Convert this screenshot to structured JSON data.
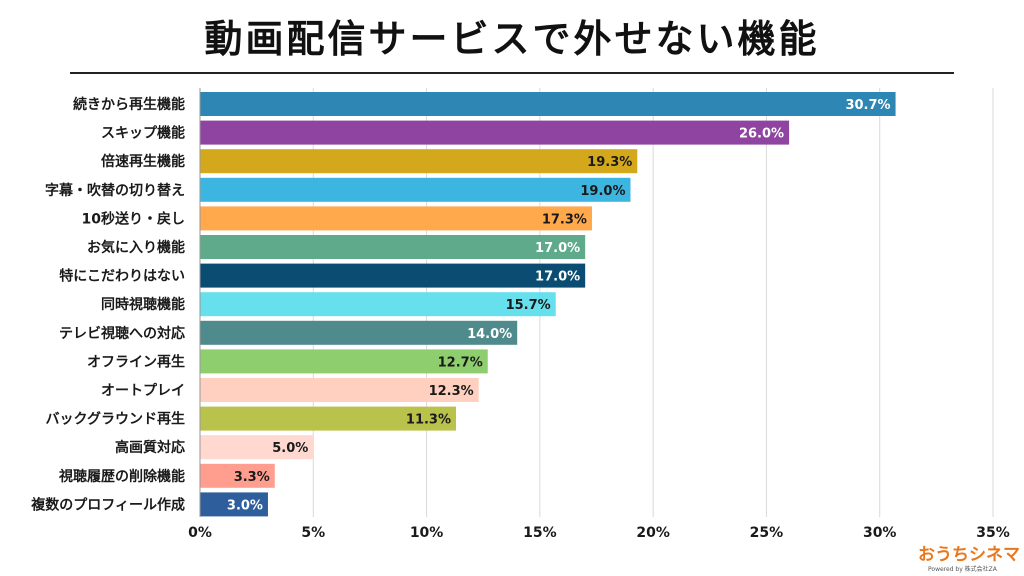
{
  "title": "動画配信サービスで外せない機能",
  "logo": {
    "text": "おうちシネマ",
    "sub": "Powered by 株式会社ZA"
  },
  "chart_data": {
    "type": "bar",
    "orientation": "horizontal",
    "title": "動画配信サービスで外せない機能",
    "categories": [
      "続きから再生機能",
      "スキップ機能",
      "倍速再生機能",
      "字幕・吹替の切り替え",
      "10秒送り・戻し",
      "お気に入り機能",
      "特にこだわりはない",
      "同時視聴機能",
      "テレビ視聴への対応",
      "オフライン再生",
      "オートプレイ",
      "バックグラウンド再生",
      "高画質対応",
      "視聴履歴の削除機能",
      "複数のプロフィール作成"
    ],
    "values": [
      30.7,
      26.0,
      19.3,
      19.0,
      17.3,
      17.0,
      17.0,
      15.7,
      14.0,
      12.7,
      12.3,
      11.3,
      5.0,
      3.3,
      3.0
    ],
    "value_labels": [
      "30.7%",
      "26.0%",
      "19.3%",
      "19.0%",
      "17.3%",
      "17.0%",
      "17.0%",
      "15.7%",
      "14.0%",
      "12.7%",
      "12.3%",
      "11.3%",
      "5.0%",
      "3.3%",
      "3.0%"
    ],
    "colors": [
      "#2e86b5",
      "#8e44a0",
      "#d4a81c",
      "#3cb6e0",
      "#ffa84c",
      "#5eaa8a",
      "#0b4d72",
      "#65e0ec",
      "#4f8a8c",
      "#8fce6e",
      "#ffd0c0",
      "#b9c24a",
      "#ffd8d0",
      "#ff9e8e",
      "#2e5f9c"
    ],
    "label_colors": [
      "#ffffff",
      "#ffffff",
      "#1a1a1a",
      "#1a1a1a",
      "#1a1a1a",
      "#ffffff",
      "#ffffff",
      "#1a1a1a",
      "#ffffff",
      "#1a1a1a",
      "#1a1a1a",
      "#1a1a1a",
      "#1a1a1a",
      "#1a1a1a",
      "#ffffff"
    ],
    "xlim": [
      0,
      35
    ],
    "xticks": [
      0,
      5,
      10,
      15,
      20,
      25,
      30,
      35
    ],
    "xtick_labels": [
      "0%",
      "5%",
      "10%",
      "15%",
      "20%",
      "25%",
      "30%",
      "35%"
    ],
    "grid": true,
    "xlabel": "",
    "ylabel": ""
  }
}
